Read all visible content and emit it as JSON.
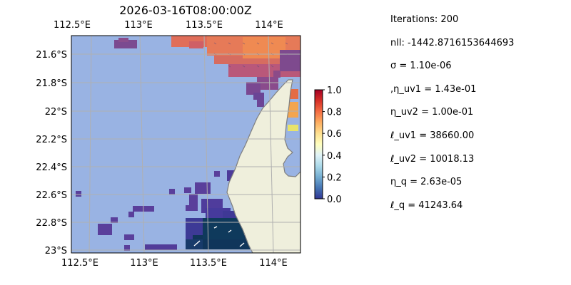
{
  "map": {
    "title": "2026-03-16T08:00:00Z",
    "lon_ticks_top": [
      "112.5°E",
      "113°E",
      "113.5°E",
      "114°E"
    ],
    "lon_ticks_bottom": [
      "112.5°E",
      "113°E",
      "113.5°E",
      "114°E"
    ],
    "lat_ticks": [
      "21.6°S",
      "21.8°S",
      "22°S",
      "22.2°S",
      "22.4°S",
      "22.6°S",
      "22.8°S",
      "23°S"
    ],
    "colors": {
      "ocean": "#99b3e3",
      "land": "#efefdc",
      "coast": "#7f7f7f",
      "grid": "#b0b0b0"
    }
  },
  "colorbar": {
    "ticks": [
      "1.0",
      "0.8",
      "0.6",
      "0.4",
      "0.2",
      "0.0"
    ],
    "colormap": "RdYlBu_r"
  },
  "stats": [
    "Iterations: 200",
    "nll: -1442.8716153644693",
    "σ = 1.10e-06",
    ",η_uv1 = 1.43e-01",
    "η_uv2 = 1.00e-01",
    "ℓ_uv1 = 38660.00",
    "ℓ_uv2 = 10018.13",
    "η_q = 2.63e-05",
    "ℓ_q = 41243.64"
  ]
}
